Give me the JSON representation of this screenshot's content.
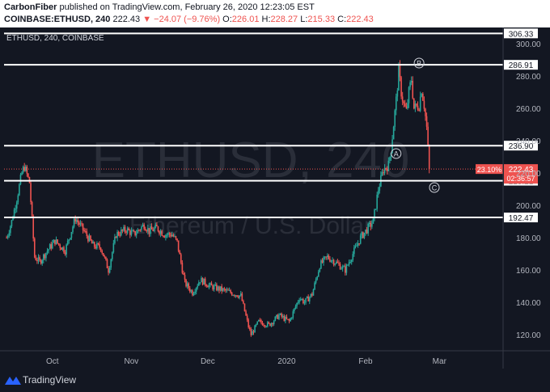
{
  "header": {
    "author": "CarbonFiber",
    "published_text": "published on TradingView.com, February 26, 2020 12:23:05 EST",
    "symbol": "COINBASE:ETHUSD, 240",
    "last": "222.43",
    "change_arrow": "▼",
    "change": "−24.07 (−9.76%)",
    "o_label": "O:",
    "o_value": "226.01",
    "h_label": "H:",
    "h_value": "228.27",
    "l_label": "L:",
    "l_value": "215.33",
    "c_label": "C:",
    "c_value": "222.43"
  },
  "colors": {
    "background": "#131722",
    "up": "#26a69a",
    "down": "#ef5350",
    "level_line": "#ffffff",
    "price_line": "#ef5350",
    "axis_text": "#b2b5be",
    "watermark": "#2a2e39"
  },
  "chart_data": {
    "type": "candlestick",
    "title": "ETHUSD, 240, COINBASE",
    "watermark_symbol": "ETHUSD, 240",
    "watermark_desc": "Ethereum / U.S. Dollar",
    "y_ticks": [
      120,
      140,
      160,
      180,
      200,
      220,
      240,
      260,
      280,
      300
    ],
    "x_labels": [
      "Oct",
      "Nov",
      "Dec",
      "2020",
      "Feb",
      "Mar"
    ],
    "ylim": [
      110,
      310
    ],
    "price_path": [
      {
        "t": "2019-09-13",
        "v": 180
      },
      {
        "t": "2019-09-15",
        "v": 190
      },
      {
        "t": "2019-09-17",
        "v": 204
      },
      {
        "t": "2019-09-19",
        "v": 220
      },
      {
        "t": "2019-09-20",
        "v": 224
      },
      {
        "t": "2019-09-22",
        "v": 214
      },
      {
        "t": "2019-09-24",
        "v": 168
      },
      {
        "t": "2019-09-26",
        "v": 165
      },
      {
        "t": "2019-09-29",
        "v": 172
      },
      {
        "t": "2019-10-02",
        "v": 178
      },
      {
        "t": "2019-10-06",
        "v": 172
      },
      {
        "t": "2019-10-10",
        "v": 192
      },
      {
        "t": "2019-10-13",
        "v": 185
      },
      {
        "t": "2019-10-17",
        "v": 175
      },
      {
        "t": "2019-10-20",
        "v": 174
      },
      {
        "t": "2019-10-23",
        "v": 160
      },
      {
        "t": "2019-10-26",
        "v": 182
      },
      {
        "t": "2019-10-30",
        "v": 185
      },
      {
        "t": "2019-11-02",
        "v": 182
      },
      {
        "t": "2019-11-06",
        "v": 188
      },
      {
        "t": "2019-11-08",
        "v": 184
      },
      {
        "t": "2019-11-11",
        "v": 186
      },
      {
        "t": "2019-11-14",
        "v": 182
      },
      {
        "t": "2019-11-17",
        "v": 182
      },
      {
        "t": "2019-11-19",
        "v": 177
      },
      {
        "t": "2019-11-22",
        "v": 152
      },
      {
        "t": "2019-11-25",
        "v": 146
      },
      {
        "t": "2019-11-28",
        "v": 154
      },
      {
        "t": "2019-12-02",
        "v": 150
      },
      {
        "t": "2019-12-06",
        "v": 148
      },
      {
        "t": "2019-12-10",
        "v": 146
      },
      {
        "t": "2019-12-14",
        "v": 144
      },
      {
        "t": "2019-12-17",
        "v": 125
      },
      {
        "t": "2019-12-18",
        "v": 120
      },
      {
        "t": "2019-12-21",
        "v": 128
      },
      {
        "t": "2019-12-25",
        "v": 126
      },
      {
        "t": "2019-12-29",
        "v": 132
      },
      {
        "t": "2020-01-02",
        "v": 128
      },
      {
        "t": "2020-01-06",
        "v": 143
      },
      {
        "t": "2020-01-08",
        "v": 140
      },
      {
        "t": "2020-01-11",
        "v": 145
      },
      {
        "t": "2020-01-14",
        "v": 163
      },
      {
        "t": "2020-01-17",
        "v": 168
      },
      {
        "t": "2020-01-20",
        "v": 165
      },
      {
        "t": "2020-01-24",
        "v": 160
      },
      {
        "t": "2020-01-27",
        "v": 170
      },
      {
        "t": "2020-01-30",
        "v": 180
      },
      {
        "t": "2020-02-02",
        "v": 186
      },
      {
        "t": "2020-02-04",
        "v": 190
      },
      {
        "t": "2020-02-06",
        "v": 210
      },
      {
        "t": "2020-02-08",
        "v": 222
      },
      {
        "t": "2020-02-10",
        "v": 225
      },
      {
        "t": "2020-02-11",
        "v": 235
      },
      {
        "t": "2020-02-13",
        "v": 265
      },
      {
        "t": "2020-02-14",
        "v": 283
      },
      {
        "t": "2020-02-15",
        "v": 270
      },
      {
        "t": "2020-02-16",
        "v": 262
      },
      {
        "t": "2020-02-17",
        "v": 258
      },
      {
        "t": "2020-02-18",
        "v": 270
      },
      {
        "t": "2020-02-19",
        "v": 278
      },
      {
        "t": "2020-02-20",
        "v": 260
      },
      {
        "t": "2020-02-22",
        "v": 262
      },
      {
        "t": "2020-02-23",
        "v": 272
      },
      {
        "t": "2020-02-24",
        "v": 262
      },
      {
        "t": "2020-02-25",
        "v": 248
      },
      {
        "t": "2020-02-26",
        "v": 222
      }
    ],
    "horizontal_levels": [
      {
        "value": 306.33,
        "label": "306.33"
      },
      {
        "value": 286.91,
        "label": "286.91"
      },
      {
        "value": 236.9,
        "label": "236.90"
      },
      {
        "value": 215.21,
        "label": "215.21"
      },
      {
        "value": 192.47,
        "label": "192.47"
      }
    ],
    "current_price": {
      "value": 222.43,
      "label": "222.43",
      "percent_label": "23.10%",
      "countdown": "02:36:57"
    },
    "wave_labels": [
      {
        "label": "A",
        "t": "2020-02-13",
        "v": 232
      },
      {
        "label": "B",
        "t": "2020-02-22",
        "v": 288
      },
      {
        "label": "C",
        "t": "2020-02-28",
        "v": 211
      }
    ]
  },
  "footer": {
    "brand": "TradingView"
  }
}
